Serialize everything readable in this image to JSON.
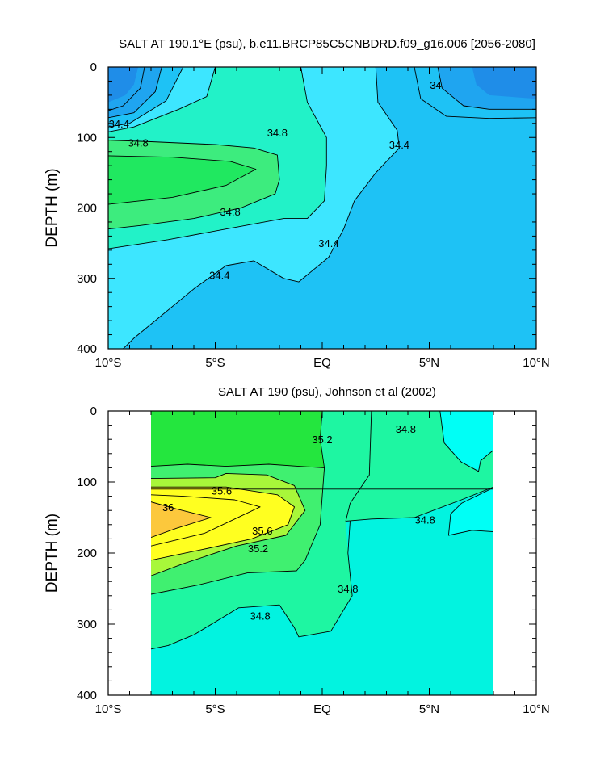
{
  "chart_data": [
    {
      "type": "contour",
      "title": "SALT AT 190.1°E (psu), b.e11.BRCP85C5CNBDRD.f09_g16.006 [2056-2080]",
      "ylabel": "DEPTH (m)",
      "xlabel": "",
      "xlim": [
        -10,
        10
      ],
      "ylim": [
        400,
        0
      ],
      "x_ticks": [
        {
          "value": -10,
          "label": "10°S"
        },
        {
          "value": -5,
          "label": "5°S"
        },
        {
          "value": 0,
          "label": "EQ"
        },
        {
          "value": 5,
          "label": "5°N"
        },
        {
          "value": 10,
          "label": "10°N"
        }
      ],
      "y_ticks": [
        {
          "value": 0,
          "label": "0"
        },
        {
          "value": 100,
          "label": "100"
        },
        {
          "value": 200,
          "label": "200"
        },
        {
          "value": 300,
          "label": "300"
        },
        {
          "value": 400,
          "label": "400"
        }
      ],
      "contour_interval": 0.2,
      "colors": {
        "fresh_core": "#1f8de8",
        "lt_34_2": "#1fa5f0",
        "lt_34_4": "#1ec2f5",
        "lt_34_6": "#3de6ff",
        "lt_34_8": "#22f2c8",
        "lt_35_0": "#3dec7e",
        "salty_core": "#20e860"
      },
      "regions": [
        {
          "name": "fresh-nw",
          "polygon": [
            [
              -10,
              0
            ],
            [
              -10,
              50
            ],
            [
              -9.2,
              40
            ],
            [
              -8.8,
              25
            ],
            [
              -8.6,
              0
            ]
          ],
          "color": "fresh_core"
        },
        {
          "name": "fresh-ne",
          "polygon": [
            [
              7,
              0
            ],
            [
              7.2,
              25
            ],
            [
              7.8,
              40
            ],
            [
              10,
              45
            ],
            [
              10,
              0
            ]
          ],
          "color": "fresh_core"
        }
      ],
      "contours": [
        {
          "value": 34.2,
          "points": [
            [
              -8.3,
              0
            ],
            [
              -8.5,
              30
            ],
            [
              -9.3,
              55
            ],
            [
              -10,
              62
            ]
          ]
        },
        {
          "value": 34.2,
          "points": [
            [
              5.4,
              0
            ],
            [
              5.6,
              30
            ],
            [
              6.6,
              55
            ],
            [
              7.8,
              60
            ],
            [
              10,
              60
            ]
          ]
        },
        {
          "value": 34.4,
          "points": [
            [
              -7.5,
              0
            ],
            [
              -7.8,
              35
            ],
            [
              -8.8,
              65
            ],
            [
              -10,
              72
            ]
          ]
        },
        {
          "value": 34.4,
          "points": [
            [
              4.3,
              0
            ],
            [
              4.6,
              45
            ],
            [
              5.8,
              70
            ],
            [
              7.8,
              73
            ],
            [
              10,
              72
            ]
          ]
        },
        {
          "value": 34.6,
          "points": [
            [
              -6.5,
              0
            ],
            [
              -7.3,
              48
            ],
            [
              -9,
              80
            ],
            [
              -10,
              85
            ]
          ]
        },
        {
          "value": 34.6,
          "points": [
            [
              -5,
              0
            ],
            [
              -5.4,
              42
            ],
            [
              -6.7,
              60
            ],
            [
              -8.8,
              85
            ],
            [
              -10,
              92
            ]
          ]
        },
        {
          "value": 34.4,
          "points": [
            [
              2.5,
              0
            ],
            [
              2.6,
              50
            ],
            [
              3.5,
              90
            ],
            [
              3.6,
              115
            ],
            [
              2.5,
              150
            ],
            [
              1.5,
              190
            ],
            [
              1,
              230
            ],
            [
              0.3,
              270
            ],
            [
              -1.1,
              305
            ],
            [
              -1.8,
              300
            ],
            [
              -3.2,
              275
            ],
            [
              -4.5,
              282
            ],
            [
              -6,
              315
            ],
            [
              -8.8,
              385
            ],
            [
              -9.3,
              400
            ]
          ]
        },
        {
          "value": 34.6,
          "points": [
            [
              -1,
              0
            ],
            [
              -0.7,
              50
            ],
            [
              0.2,
              100
            ],
            [
              0.2,
              140
            ],
            [
              0.1,
              190
            ],
            [
              -0.7,
              215
            ],
            [
              -1.8,
              215
            ],
            [
              -4.5,
              230
            ],
            [
              -7.2,
              245
            ],
            [
              -10,
              258
            ]
          ]
        },
        {
          "value": 34.8,
          "points": [
            [
              -10,
              104
            ],
            [
              -8,
              106
            ],
            [
              -5,
              110
            ],
            [
              -3.2,
              115
            ],
            [
              -2.1,
              125
            ],
            [
              -2,
              160
            ],
            [
              -2.2,
              180
            ],
            [
              -3.8,
              200
            ],
            [
              -6,
              215
            ],
            [
              -8.5,
              225
            ],
            [
              -10,
              230
            ]
          ]
        },
        {
          "value": 35.0,
          "points": [
            [
              -10,
              126
            ],
            [
              -7,
              128
            ],
            [
              -4.3,
              134
            ],
            [
              -3.1,
              145
            ],
            [
              -4.5,
              168
            ],
            [
              -7,
              185
            ],
            [
              -10,
              195
            ]
          ]
        }
      ],
      "contour_labels": [
        {
          "text": "34",
          "x": 5.3,
          "y": 25
        },
        {
          "text": "34.4",
          "x": -9.5,
          "y": 80
        },
        {
          "text": "34.8",
          "x": -2.1,
          "y": 93
        },
        {
          "text": "34.8",
          "x": -8.6,
          "y": 107
        },
        {
          "text": "34.4",
          "x": 3.6,
          "y": 110
        },
        {
          "text": "34.8",
          "x": -4.3,
          "y": 205
        },
        {
          "text": "34.4",
          "x": 0.3,
          "y": 250
        },
        {
          "text": "34.4",
          "x": -4.8,
          "y": 295
        }
      ]
    },
    {
      "type": "contour",
      "title": "SALT AT 190 (psu), Johnson et al (2002)",
      "ylabel": "DEPTH (m)",
      "xlabel": "",
      "xlim": [
        -10,
        10
      ],
      "ylim": [
        400,
        0
      ],
      "data_xrange": [
        -8,
        8
      ],
      "x_ticks": [
        {
          "value": -10,
          "label": "10°S"
        },
        {
          "value": -5,
          "label": "5°S"
        },
        {
          "value": 0,
          "label": "EQ"
        },
        {
          "value": 5,
          "label": "5°N"
        },
        {
          "value": 10,
          "label": "10°N"
        }
      ],
      "y_ticks": [
        {
          "value": 0,
          "label": "0"
        },
        {
          "value": 100,
          "label": "100"
        },
        {
          "value": 200,
          "label": "200"
        },
        {
          "value": 300,
          "label": "300"
        },
        {
          "value": 400,
          "label": "400"
        }
      ],
      "contour_interval": 0.2,
      "colors": {
        "lt_34_6": "#00fff6",
        "lt_34_8": "#02f3e0",
        "lt_35_0": "#1ef6a2",
        "lt_35_2": "#40f070",
        "lt_35_4": "#24e63e",
        "lt_35_6": "#a8f73a",
        "lt_35_8": "#ffff20",
        "gt_36": "#fcc83c"
      },
      "contours": [
        {
          "value": 34.6,
          "points": [
            [
              5.5,
              0
            ],
            [
              5.7,
              45
            ],
            [
              6.5,
              72
            ],
            [
              7.3,
              85
            ],
            [
              7.4,
              70
            ],
            [
              8,
              55
            ]
          ]
        },
        {
          "value": 34.6,
          "points": [
            [
              8,
              108
            ],
            [
              6.5,
              130
            ],
            [
              6,
              145
            ],
            [
              5.9,
              175
            ],
            [
              7,
              168
            ],
            [
              8,
              170
            ]
          ]
        },
        {
          "value": 34.8,
          "points": [
            [
              -8,
              110
            ],
            [
              8,
              110
            ]
          ]
        },
        {
          "value": 35.0,
          "points": [
            [
              2.3,
              0
            ],
            [
              2.2,
              90
            ],
            [
              1.3,
              130
            ],
            [
              1.1,
              155
            ],
            [
              2.3,
              152
            ],
            [
              4.3,
              150
            ],
            [
              6.5,
              125
            ],
            [
              8,
              107
            ]
          ]
        },
        {
          "value": 35.0,
          "points": [
            [
              1.3,
              155
            ],
            [
              1.2,
              200
            ],
            [
              1.4,
              260
            ],
            [
              0.4,
              310
            ],
            [
              -1.1,
              318
            ],
            [
              -1.3,
              305
            ],
            [
              -2,
              273
            ],
            [
              -3.9,
              277
            ],
            [
              -6,
              315
            ],
            [
              -7.2,
              330
            ],
            [
              -8,
              335
            ]
          ]
        },
        {
          "value": 35.2,
          "points": [
            [
              -8,
              78
            ],
            [
              -6.3,
              75
            ],
            [
              -4.5,
              78
            ],
            [
              -2.5,
              75
            ],
            [
              -1.1,
              78
            ],
            [
              0.1,
              80
            ],
            [
              -0.1,
              40
            ],
            [
              0,
              0
            ]
          ]
        },
        {
          "value": 35.2,
          "points": [
            [
              0.1,
              80
            ],
            [
              -0.1,
              160
            ],
            [
              -0.8,
              210
            ],
            [
              -1.2,
              225
            ],
            [
              -3.5,
              228
            ],
            [
              -5.8,
              245
            ],
            [
              -8,
              258
            ]
          ]
        },
        {
          "value": 35.4,
          "points": [
            [
              -8,
              95
            ],
            [
              -5,
              94
            ],
            [
              -4.5,
              88
            ],
            [
              -2.6,
              90
            ],
            [
              -1.3,
              105
            ],
            [
              -0.8,
              140
            ],
            [
              -1.7,
              175
            ],
            [
              -4,
              190
            ],
            [
              -6.5,
              215
            ],
            [
              -8,
              232
            ]
          ]
        },
        {
          "value": 35.6,
          "points": [
            [
              -8,
              107
            ],
            [
              -4.5,
              107
            ],
            [
              -2.1,
              118
            ],
            [
              -1.3,
              135
            ],
            [
              -1.6,
              160
            ],
            [
              -3.3,
              180
            ],
            [
              -5.6,
              195
            ],
            [
              -8,
              210
            ]
          ]
        },
        {
          "value": 35.8,
          "points": [
            [
              -8,
              118
            ],
            [
              -6.5,
              120
            ],
            [
              -4.1,
              125
            ],
            [
              -2.9,
              135
            ],
            [
              -3.8,
              148
            ],
            [
              -5.5,
              172
            ],
            [
              -8,
              190
            ]
          ]
        },
        {
          "value": 36.0,
          "points": [
            [
              -8,
              128
            ],
            [
              -6.8,
              138
            ],
            [
              -5.2,
              150
            ],
            [
              -6.8,
              165
            ],
            [
              -8,
              178
            ]
          ]
        }
      ],
      "contour_labels": [
        {
          "text": "34.8",
          "x": 3.9,
          "y": 25
        },
        {
          "text": "35.2",
          "x": 0.0,
          "y": 40
        },
        {
          "text": "35.6",
          "x": -4.7,
          "y": 112
        },
        {
          "text": "36",
          "x": -7.2,
          "y": 135
        },
        {
          "text": "34.8",
          "x": 4.8,
          "y": 153
        },
        {
          "text": "35.6",
          "x": -2.8,
          "y": 168
        },
        {
          "text": "35.2",
          "x": -3.0,
          "y": 193
        },
        {
          "text": "34.8",
          "x": 1.2,
          "y": 250
        },
        {
          "text": "34.8",
          "x": -2.9,
          "y": 288
        }
      ]
    }
  ]
}
